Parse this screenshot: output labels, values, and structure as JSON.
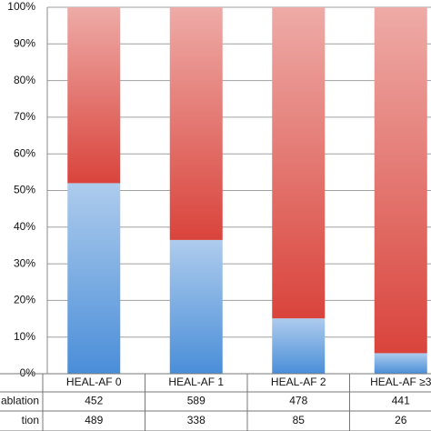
{
  "chart_data": {
    "type": "stacked_bar_percent",
    "categories": [
      "HEAL-AF 0",
      "HEAL-AF 1",
      "HEAL-AF 2",
      "HEAL-AF ≥3"
    ],
    "series": [
      {
        "name": "tion",
        "color": "#4a8ed8",
        "values": [
          52,
          36.5,
          15.1,
          5.6
        ],
        "counts": [
          489,
          338,
          85,
          26
        ]
      },
      {
        "name": "ablation",
        "color": "#d9443c",
        "values": [
          48,
          63.5,
          84.9,
          94.4
        ],
        "counts": [
          452,
          589,
          478,
          441
        ]
      }
    ],
    "table_order": [
      1,
      0
    ],
    "ylim": [
      0,
      100
    ],
    "yticks": [
      {
        "value": 0,
        "label": "0%"
      },
      {
        "value": 10,
        "label": "10%"
      },
      {
        "value": 20,
        "label": "20%"
      },
      {
        "value": 30,
        "label": "30%"
      },
      {
        "value": 40,
        "label": "40%"
      },
      {
        "value": 50,
        "label": "50%"
      },
      {
        "value": 60,
        "label": "60%"
      },
      {
        "value": 70,
        "label": "70%"
      },
      {
        "value": 80,
        "label": "80%"
      },
      {
        "value": 90,
        "label": "90%"
      },
      {
        "value": 100,
        "label": "100%"
      }
    ],
    "grid": true
  }
}
